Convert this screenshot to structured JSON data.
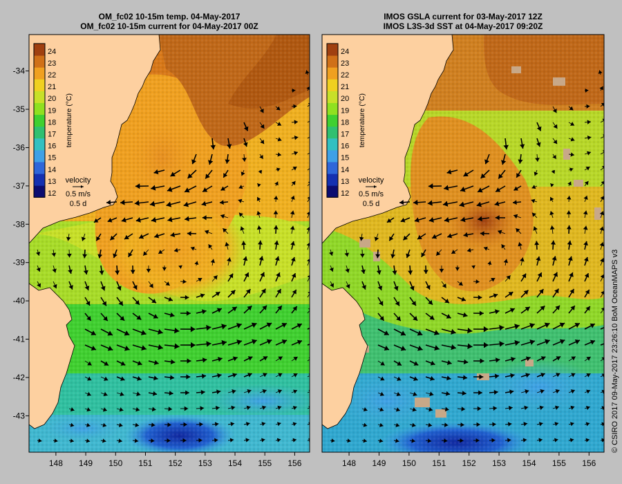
{
  "left_panel": {
    "title_line1": "OM_fc02 10-15m temp. 04-May-2017",
    "title_line2": "OM_fc02 10-15m current for 04-May-2017 00Z"
  },
  "right_panel": {
    "title_line1": "IMOS GSLA current for 03-May-2017 12Z",
    "title_line2": "IMOS L3S-3d SST at 04-May-2017 09:20Z"
  },
  "colorbar": {
    "label": "temperature (°C)",
    "min": 12,
    "max": 24,
    "ticks": [
      "24",
      "23",
      "22",
      "21",
      "20",
      "19",
      "18",
      "17",
      "16",
      "15",
      "14",
      "13",
      "12"
    ],
    "colors": [
      "#0c0c70",
      "#1530b0",
      "#2f66d9",
      "#3fa0e6",
      "#33c0c0",
      "#30c070",
      "#40d030",
      "#90e020",
      "#c8e028",
      "#f0d020",
      "#f0a020",
      "#d07018",
      "#a04010"
    ]
  },
  "velocity_key": {
    "label": "velocity",
    "speed": "0.5 m/s",
    "duration": "0.5 d"
  },
  "axes": {
    "lon_ticks": [
      "148",
      "149",
      "150",
      "151",
      "152",
      "153",
      "154",
      "155",
      "156"
    ],
    "lat_ticks": [
      "-34",
      "-35",
      "-36",
      "-37",
      "-38",
      "-39",
      "-40",
      "-41",
      "-42",
      "-43"
    ],
    "lon_range": [
      147.1,
      156.5
    ],
    "lat_range": [
      -43.95,
      -33.05
    ]
  },
  "credit": "© CSIRO 2017   09-May-2017 23:26:10 BoM OceanMAPS v3",
  "colors": {
    "land": "#fdd0a0",
    "background": "#c0c0c0"
  }
}
